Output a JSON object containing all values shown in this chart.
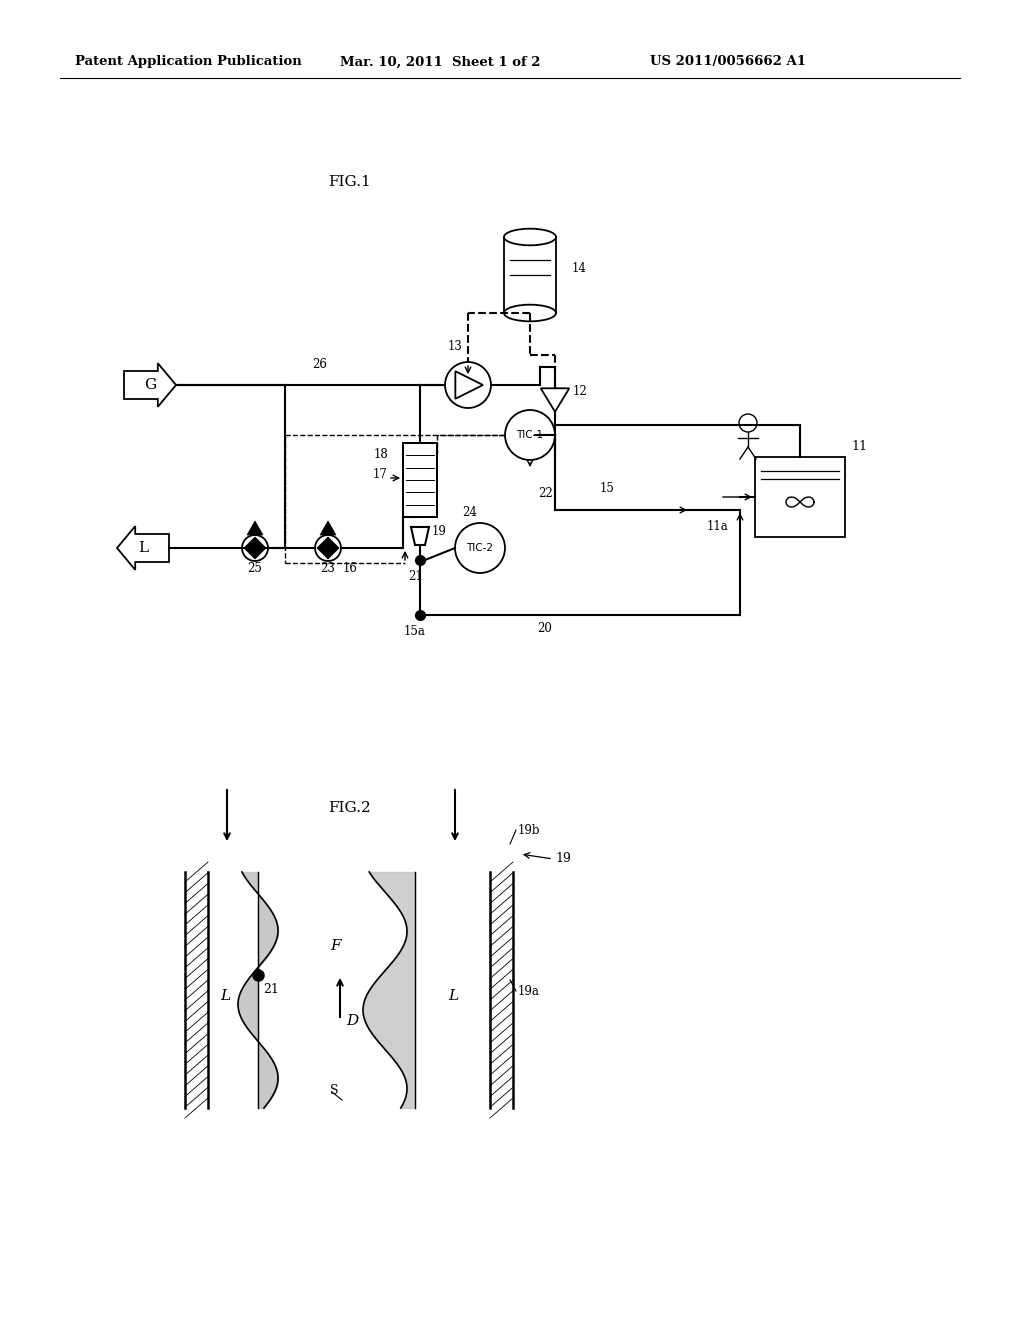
{
  "title_left": "Patent Application Publication",
  "title_mid": "Mar. 10, 2011  Sheet 1 of 2",
  "title_right": "US 2011/0056662 A1",
  "fig1_label": "FIG.1",
  "fig2_label": "FIG.2",
  "bg_color": "#ffffff",
  "line_color": "#000000"
}
